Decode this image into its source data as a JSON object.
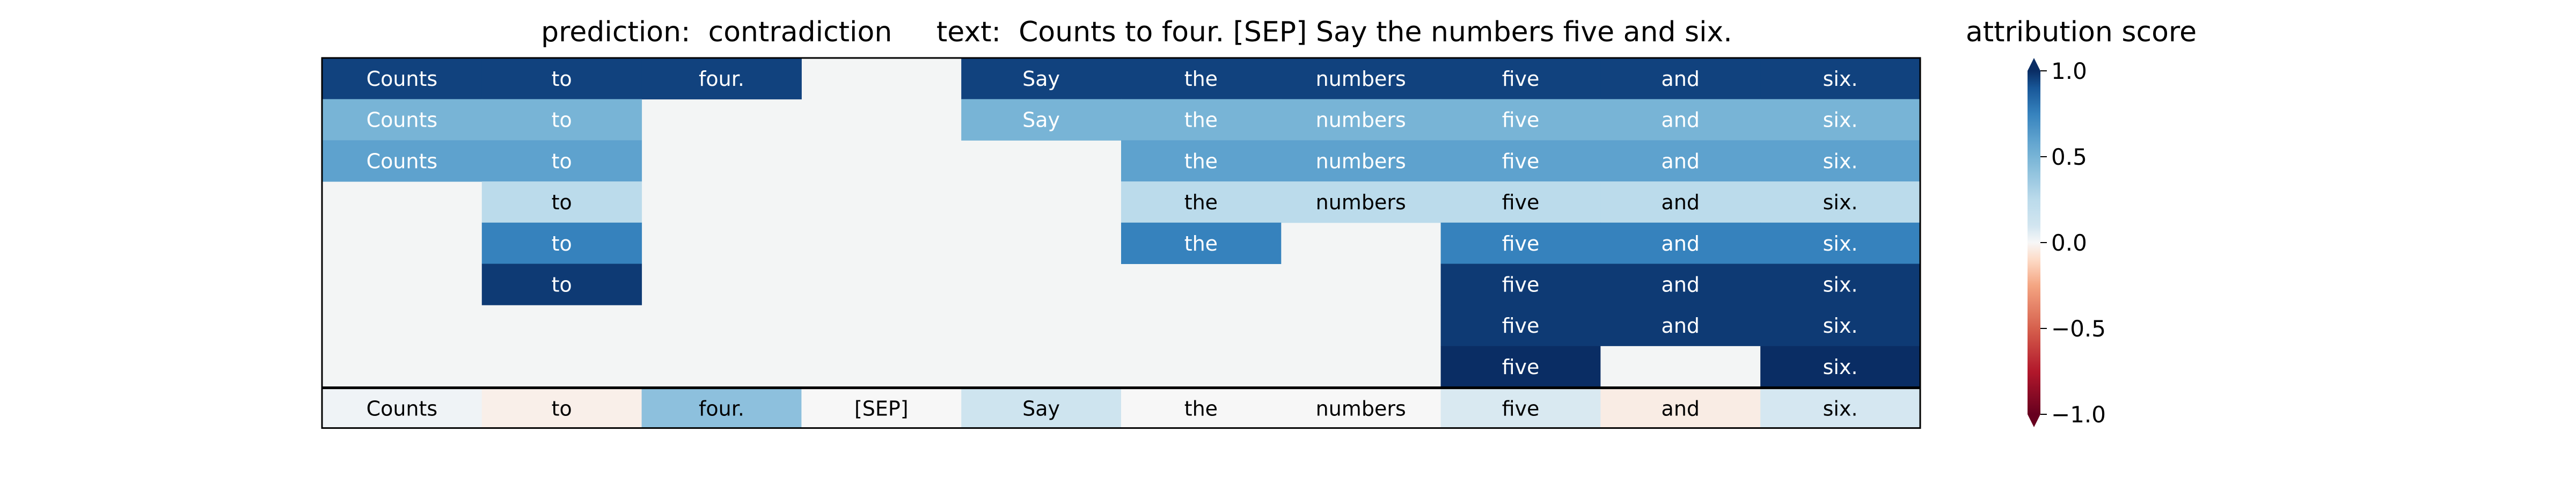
{
  "chart_data": {
    "type": "heatmap",
    "title": "prediction:  contradiction     text:  Counts to four. [SEP] Say the numbers five and six.",
    "colorbar_label": "attribution score",
    "colorbar_range": [
      -1.0,
      1.0
    ],
    "colorbar_ticks": [
      "1.0",
      "0.5",
      "0.0",
      "−0.5",
      "−1.0"
    ],
    "colormap": "RdBu",
    "tokens": [
      "Counts",
      "to",
      "four.",
      "[SEP]",
      "Say",
      "the",
      "numbers",
      "five",
      "and",
      "six."
    ],
    "rows": [
      {
        "cells": [
          {
            "value": 0.95,
            "label": "Counts"
          },
          {
            "value": 0.95,
            "label": "to"
          },
          {
            "value": 0.95,
            "label": "four."
          },
          null,
          {
            "value": 0.95,
            "label": "Say"
          },
          {
            "value": 0.95,
            "label": "the"
          },
          {
            "value": 0.95,
            "label": "numbers"
          },
          {
            "value": 0.95,
            "label": "five"
          },
          {
            "value": 0.95,
            "label": "and"
          },
          {
            "value": 0.95,
            "label": "six."
          }
        ]
      },
      {
        "cells": [
          {
            "value": 0.5,
            "label": "Counts"
          },
          {
            "value": 0.5,
            "label": "to"
          },
          null,
          null,
          {
            "value": 0.5,
            "label": "Say"
          },
          {
            "value": 0.5,
            "label": "the"
          },
          {
            "value": 0.5,
            "label": "numbers"
          },
          {
            "value": 0.5,
            "label": "five"
          },
          {
            "value": 0.5,
            "label": "and"
          },
          {
            "value": 0.5,
            "label": "six."
          }
        ]
      },
      {
        "cells": [
          {
            "value": 0.6,
            "label": "Counts"
          },
          {
            "value": 0.6,
            "label": "to"
          },
          null,
          null,
          null,
          {
            "value": 0.6,
            "label": "the"
          },
          {
            "value": 0.6,
            "label": "numbers"
          },
          {
            "value": 0.6,
            "label": "five"
          },
          {
            "value": 0.6,
            "label": "and"
          },
          {
            "value": 0.6,
            "label": "six."
          }
        ]
      },
      {
        "cells": [
          null,
          {
            "value": 0.25,
            "label": "to"
          },
          null,
          null,
          null,
          {
            "value": 0.25,
            "label": "the"
          },
          {
            "value": 0.25,
            "label": "numbers"
          },
          {
            "value": 0.25,
            "label": "five"
          },
          {
            "value": 0.25,
            "label": "and"
          },
          {
            "value": 0.25,
            "label": "six."
          }
        ]
      },
      {
        "cells": [
          null,
          {
            "value": 0.75,
            "label": "to"
          },
          null,
          null,
          null,
          {
            "value": 0.75,
            "label": "the"
          },
          null,
          {
            "value": 0.75,
            "label": "five"
          },
          {
            "value": 0.75,
            "label": "and"
          },
          {
            "value": 0.75,
            "label": "six."
          }
        ]
      },
      {
        "cells": [
          null,
          {
            "value": 0.97,
            "label": "to"
          },
          null,
          null,
          null,
          null,
          null,
          {
            "value": 0.97,
            "label": "five"
          },
          {
            "value": 0.97,
            "label": "and"
          },
          {
            "value": 0.97,
            "label": "six."
          }
        ]
      },
      {
        "cells": [
          null,
          null,
          null,
          null,
          null,
          null,
          null,
          {
            "value": 0.97,
            "label": "five"
          },
          {
            "value": 0.97,
            "label": "and"
          },
          {
            "value": 0.97,
            "label": "six."
          }
        ]
      },
      {
        "cells": [
          null,
          null,
          null,
          null,
          null,
          null,
          null,
          {
            "value": 1.0,
            "label": "five"
          },
          {
            "value": 0.0,
            "label": ""
          },
          {
            "value": 1.0,
            "label": "six."
          }
        ]
      }
    ],
    "summary": {
      "labels": [
        "Counts",
        "to",
        "four.",
        "[SEP]",
        "Say",
        "the",
        "numbers",
        "five",
        "and",
        "six."
      ],
      "values": [
        0.02,
        -0.03,
        0.42,
        0.0,
        0.12,
        0.0,
        0.0,
        0.08,
        -0.04,
        0.09
      ]
    }
  }
}
